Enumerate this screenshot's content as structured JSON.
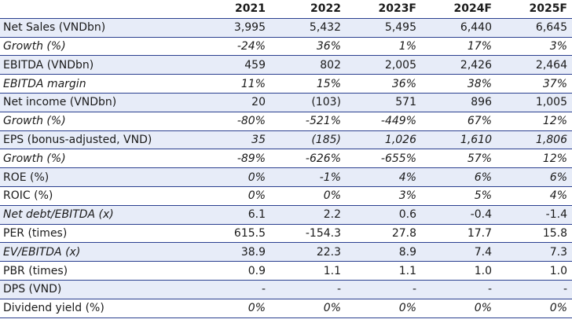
{
  "table": {
    "columns": [
      "",
      "2021",
      "2022",
      "2023F",
      "2024F",
      "2025F"
    ],
    "rows": [
      {
        "label": "Net Sales (VNDbn)",
        "values": [
          "3,995",
          "5,432",
          "5,495",
          "6,440",
          "6,645"
        ],
        "italic": false,
        "shaded": true
      },
      {
        "label": "Growth (%)",
        "values": [
          "-24%",
          "36%",
          "1%",
          "17%",
          "3%"
        ],
        "italic": true,
        "shaded": false
      },
      {
        "label": "EBITDA (VNDbn)",
        "values": [
          "459",
          "802",
          "2,005",
          "2,426",
          "2,464"
        ],
        "italic": false,
        "shaded": true
      },
      {
        "label": "EBITDA margin",
        "values": [
          "11%",
          "15%",
          "36%",
          "38%",
          "37%"
        ],
        "italic": true,
        "shaded": false
      },
      {
        "label": "Net income (VNDbn)",
        "values": [
          "20",
          "(103)",
          "571",
          "896",
          "1,005"
        ],
        "italic": false,
        "shaded": true
      },
      {
        "label": "Growth (%)",
        "values": [
          "-80%",
          "-521%",
          "-449%",
          "67%",
          "12%"
        ],
        "italic": true,
        "shaded": false
      },
      {
        "label": "EPS (bonus-adjusted, VND)",
        "values": [
          "35",
          "(185)",
          "1,026",
          "1,610",
          "1,806"
        ],
        "italic": false,
        "valuesItalic": true,
        "shaded": true
      },
      {
        "label": "Growth (%)",
        "values": [
          "-89%",
          "-626%",
          "-655%",
          "57%",
          "12%"
        ],
        "italic": true,
        "shaded": false
      },
      {
        "label": "ROE (%)",
        "values": [
          "0%",
          "-1%",
          "4%",
          "6%",
          "6%"
        ],
        "italic": false,
        "valuesItalic": true,
        "shaded": true
      },
      {
        "label": "ROIC (%)",
        "values": [
          "0%",
          "0%",
          "3%",
          "5%",
          "4%"
        ],
        "italic": false,
        "valuesItalic": true,
        "shaded": false
      },
      {
        "label": "Net debt/EBITDA (x)",
        "values": [
          "6.1",
          "2.2",
          "0.6",
          "-0.4",
          "-1.4"
        ],
        "italic": true,
        "valuesItalic": false,
        "shaded": true
      },
      {
        "label": "PER (times)",
        "values": [
          "615.5",
          "-154.3",
          "27.8",
          "17.7",
          "15.8"
        ],
        "italic": false,
        "shaded": false
      },
      {
        "label": "EV/EBITDA (x)",
        "values": [
          "38.9",
          "22.3",
          "8.9",
          "7.4",
          "7.3"
        ],
        "italic": true,
        "valuesItalic": false,
        "shaded": true
      },
      {
        "label": "PBR (times)",
        "values": [
          "0.9",
          "1.1",
          "1.1",
          "1.0",
          "1.0"
        ],
        "italic": false,
        "shaded": false
      },
      {
        "label": "DPS (VND)",
        "values": [
          "-",
          "-",
          "-",
          "-",
          "-"
        ],
        "italic": false,
        "shaded": true
      },
      {
        "label": "Dividend yield (%)",
        "values": [
          "0%",
          "0%",
          "0%",
          "0%",
          "0%"
        ],
        "italic": false,
        "valuesItalic": true,
        "shaded": false
      }
    ]
  }
}
